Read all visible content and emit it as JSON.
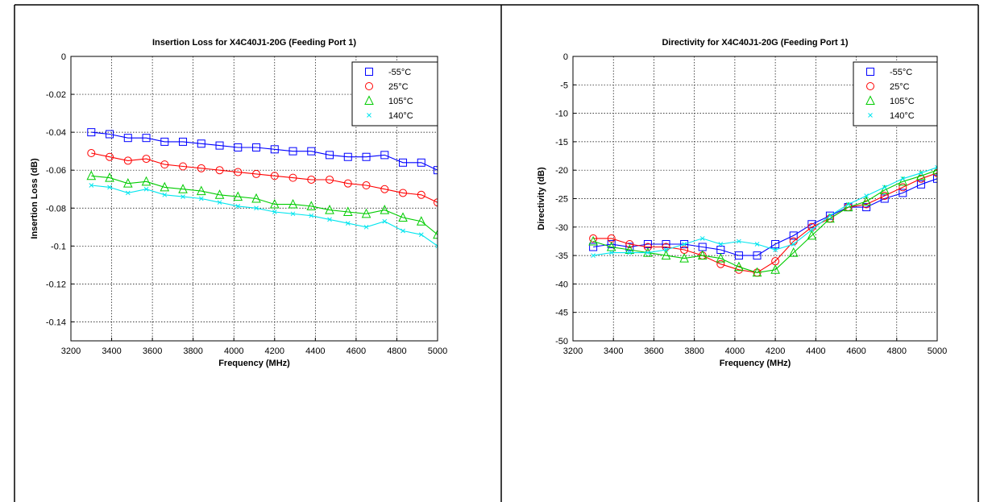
{
  "chart_data": [
    {
      "type": "line",
      "title": "Insertion Loss for X4C40J1-20G (Feeding Port 1)",
      "xlabel": "Frequency (MHz)",
      "ylabel": "Insertion Loss (dB)",
      "xlim": [
        3200,
        5000
      ],
      "ylim": [
        -0.15,
        0
      ],
      "xticks": [
        3200,
        3400,
        3600,
        3800,
        4000,
        4200,
        4400,
        4600,
        4800,
        5000
      ],
      "yticks": [
        0,
        -0.02,
        -0.04,
        -0.06,
        -0.08,
        -0.1,
        -0.12,
        -0.14
      ],
      "ytick_labels": [
        "0",
        "-0.02",
        "-0.04",
        "-0.06",
        "-0.08",
        "-0.1",
        "-0.12",
        "-0.14"
      ],
      "grid": true,
      "legend_position": "top-right",
      "series": [
        {
          "name": "-55°C",
          "color": "#0000ff",
          "marker": "square",
          "x": [
            3300,
            3390,
            3480,
            3570,
            3660,
            3750,
            3840,
            3930,
            4020,
            4110,
            4200,
            4290,
            4380,
            4470,
            4560,
            4650,
            4740,
            4830,
            4920,
            5000
          ],
          "y": [
            -0.04,
            -0.041,
            -0.043,
            -0.043,
            -0.045,
            -0.045,
            -0.046,
            -0.047,
            -0.048,
            -0.048,
            -0.049,
            -0.05,
            -0.05,
            -0.052,
            -0.053,
            -0.053,
            -0.052,
            -0.056,
            -0.056,
            -0.06
          ]
        },
        {
          "name": "25°C",
          "color": "#ff0000",
          "marker": "circle",
          "x": [
            3300,
            3390,
            3480,
            3570,
            3660,
            3750,
            3840,
            3930,
            4020,
            4110,
            4200,
            4290,
            4380,
            4470,
            4560,
            4650,
            4740,
            4830,
            4920,
            5000
          ],
          "y": [
            -0.051,
            -0.053,
            -0.055,
            -0.054,
            -0.057,
            -0.058,
            -0.059,
            -0.06,
            -0.061,
            -0.062,
            -0.063,
            -0.064,
            -0.065,
            -0.065,
            -0.067,
            -0.068,
            -0.07,
            -0.072,
            -0.073,
            -0.077
          ]
        },
        {
          "name": "105°C",
          "color": "#00cc00",
          "marker": "triangle",
          "x": [
            3300,
            3390,
            3480,
            3570,
            3660,
            3750,
            3840,
            3930,
            4020,
            4110,
            4200,
            4290,
            4380,
            4470,
            4560,
            4650,
            4740,
            4830,
            4920,
            5000
          ],
          "y": [
            -0.063,
            -0.064,
            -0.067,
            -0.066,
            -0.069,
            -0.07,
            -0.071,
            -0.073,
            -0.074,
            -0.075,
            -0.078,
            -0.078,
            -0.079,
            -0.081,
            -0.082,
            -0.083,
            -0.081,
            -0.085,
            -0.087,
            -0.094
          ]
        },
        {
          "name": "140°C",
          "color": "#00e5ee",
          "marker": "x",
          "x": [
            3300,
            3390,
            3480,
            3570,
            3660,
            3750,
            3840,
            3930,
            4020,
            4110,
            4200,
            4290,
            4380,
            4470,
            4560,
            4650,
            4740,
            4830,
            4920,
            5000
          ],
          "y": [
            -0.068,
            -0.069,
            -0.072,
            -0.07,
            -0.073,
            -0.074,
            -0.075,
            -0.077,
            -0.079,
            -0.08,
            -0.082,
            -0.083,
            -0.084,
            -0.086,
            -0.088,
            -0.09,
            -0.087,
            -0.092,
            -0.094,
            -0.1
          ]
        }
      ]
    },
    {
      "type": "line",
      "title": "Directivity for X4C40J1-20G (Feeding Port 1)",
      "xlabel": "Frequency (MHz)",
      "ylabel": "Directivity (dB)",
      "xlim": [
        3200,
        5000
      ],
      "ylim": [
        -50,
        0
      ],
      "xticks": [
        3200,
        3400,
        3600,
        3800,
        4000,
        4200,
        4400,
        4600,
        4800,
        5000
      ],
      "yticks": [
        0,
        -5,
        -10,
        -15,
        -20,
        -25,
        -30,
        -35,
        -40,
        -45,
        -50
      ],
      "ytick_labels": [
        "0",
        "-5",
        "-10",
        "-15",
        "-20",
        "-25",
        "-30",
        "-35",
        "-40",
        "-45",
        "-50"
      ],
      "grid": true,
      "legend_position": "top-right",
      "series": [
        {
          "name": "-55°C",
          "color": "#0000ff",
          "marker": "square",
          "x": [
            3300,
            3390,
            3480,
            3570,
            3660,
            3750,
            3840,
            3930,
            4020,
            4110,
            4200,
            4290,
            4380,
            4470,
            4560,
            4650,
            4740,
            4830,
            4920,
            5000
          ],
          "y": [
            -33.5,
            -33,
            -33.5,
            -33,
            -33,
            -33,
            -33.5,
            -34,
            -35,
            -35,
            -33,
            -31.5,
            -29.5,
            -28,
            -26.5,
            -26.5,
            -25,
            -24,
            -22.5,
            -21.5
          ]
        },
        {
          "name": "25°C",
          "color": "#ff0000",
          "marker": "circle",
          "x": [
            3300,
            3390,
            3480,
            3570,
            3660,
            3750,
            3840,
            3930,
            4020,
            4110,
            4200,
            4290,
            4380,
            4470,
            4560,
            4650,
            4740,
            4830,
            4920,
            5000
          ],
          "y": [
            -32,
            -32,
            -33,
            -33.5,
            -33.5,
            -34,
            -35,
            -36.5,
            -37.5,
            -38,
            -36,
            -32.5,
            -30,
            -28.5,
            -26.5,
            -26,
            -24.5,
            -23,
            -21.5,
            -20.5
          ]
        },
        {
          "name": "105°C",
          "color": "#00cc00",
          "marker": "triangle",
          "x": [
            3300,
            3390,
            3480,
            3570,
            3660,
            3750,
            3840,
            3930,
            4020,
            4110,
            4200,
            4290,
            4380,
            4470,
            4560,
            4650,
            4740,
            4830,
            4920,
            5000
          ],
          "y": [
            -32.5,
            -33.5,
            -34,
            -34.5,
            -35,
            -35.5,
            -35,
            -35.5,
            -37,
            -38,
            -37.5,
            -34.5,
            -31.5,
            -28.5,
            -26.5,
            -25.5,
            -23.5,
            -22,
            -21,
            -20
          ]
        },
        {
          "name": "140°C",
          "color": "#00e5ee",
          "marker": "x",
          "x": [
            3300,
            3390,
            3480,
            3570,
            3660,
            3750,
            3840,
            3930,
            4020,
            4110,
            4200,
            4290,
            4380,
            4470,
            4560,
            4650,
            4740,
            4830,
            4920,
            5000
          ],
          "y": [
            -35,
            -34.5,
            -34.5,
            -34.5,
            -34,
            -33,
            -32,
            -33,
            -32.5,
            -33,
            -34,
            -33,
            -30.5,
            -28,
            -26,
            -24.5,
            -23,
            -21.5,
            -20.5,
            -19.5
          ]
        }
      ]
    }
  ]
}
